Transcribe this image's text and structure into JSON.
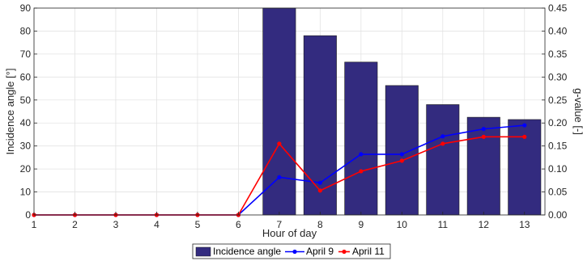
{
  "chart_data": {
    "type": "bar",
    "x": [
      1,
      2,
      3,
      4,
      5,
      6,
      7,
      8,
      9,
      10,
      11,
      12,
      13
    ],
    "xlabel": "Hour of day",
    "ylabel": "Incidence angle [°]",
    "ylabel_right": "g-value [-]",
    "xlim": [
      1,
      13.5
    ],
    "ylim": [
      0,
      90
    ],
    "ylim_right": [
      0,
      0.45
    ],
    "yticks": [
      "0",
      "10",
      "20",
      "30",
      "40",
      "50",
      "60",
      "70",
      "80",
      "90"
    ],
    "yticks_right": [
      "0.00",
      "0.05",
      "0.10",
      "0.15",
      "0.20",
      "0.25",
      "0.30",
      "0.35",
      "0.40",
      "0.45"
    ],
    "grid": true,
    "legend_position": "bottom",
    "series": [
      {
        "name": "Incidence angle",
        "kind": "bar",
        "axis": "left",
        "color": "#332b7f",
        "x": [
          7,
          8,
          9,
          10,
          11,
          12,
          13
        ],
        "values": [
          90,
          78,
          66.5,
          56.3,
          48,
          42.5,
          41.5
        ]
      },
      {
        "name": "April 9",
        "kind": "line",
        "axis": "right",
        "color": "#0000ff",
        "x": [
          1,
          2,
          3,
          4,
          5,
          6,
          7,
          8,
          9,
          10,
          11,
          12,
          13
        ],
        "values": [
          0,
          0,
          0,
          0,
          0,
          0,
          0.082,
          0.07,
          0.132,
          0.132,
          0.171,
          0.187,
          0.195
        ]
      },
      {
        "name": "April 11",
        "kind": "line",
        "axis": "right",
        "color": "#ff0000",
        "x": [
          1,
          2,
          3,
          4,
          5,
          6,
          7,
          8,
          9,
          10,
          11,
          12,
          13
        ],
        "values": [
          0,
          0,
          0,
          0,
          0,
          0,
          0.155,
          0.053,
          0.095,
          0.118,
          0.155,
          0.17,
          0.17
        ]
      }
    ]
  }
}
